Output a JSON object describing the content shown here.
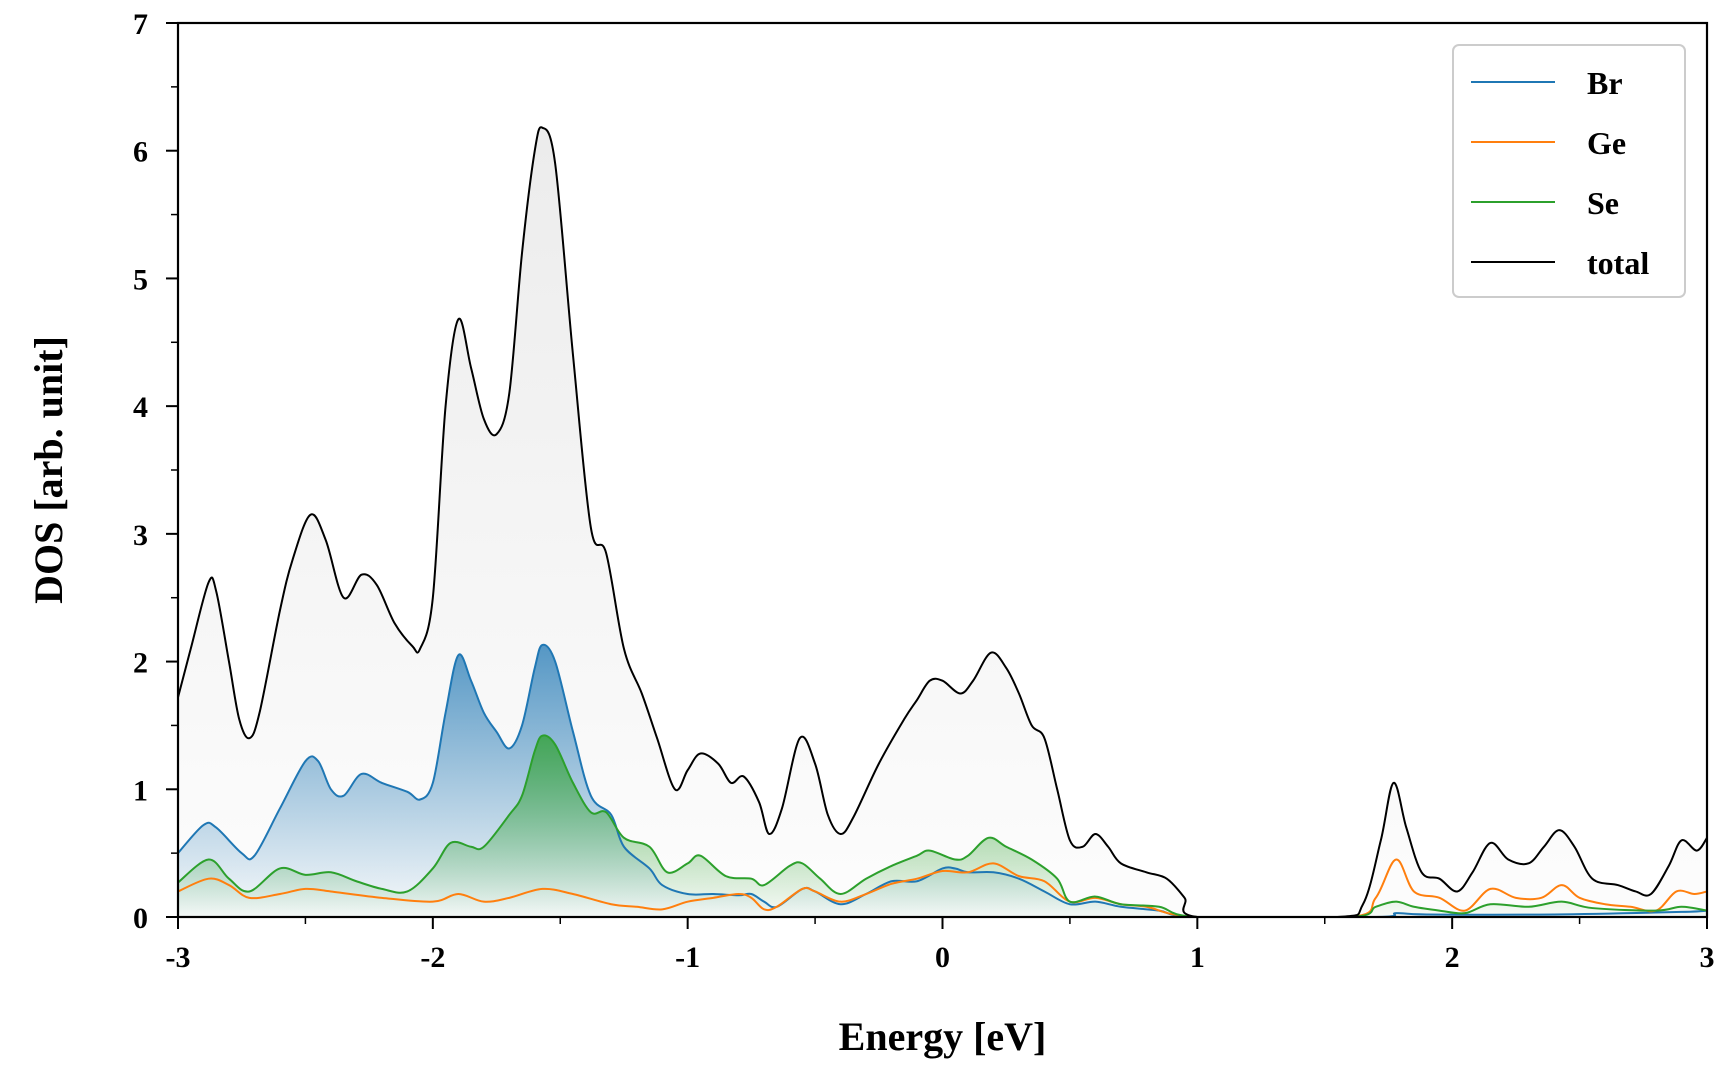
{
  "chart_data": {
    "type": "line",
    "title": "",
    "xlabel": "Energy [eV]",
    "ylabel": "DOS [arb. unit]",
    "xlim": [
      -3,
      3
    ],
    "ylim": [
      0,
      7
    ],
    "xticks": [
      -3,
      -2,
      -1,
      0,
      1,
      2,
      3
    ],
    "xtick_labels": [
      "-3",
      "-2",
      "-1",
      "0",
      "1",
      "2",
      "3"
    ],
    "yticks": [
      0,
      1,
      2,
      3,
      4,
      5,
      6,
      7
    ],
    "ytick_labels": [
      "0",
      "1",
      "2",
      "3",
      "4",
      "5",
      "6",
      "7"
    ],
    "legend_position": "top-right",
    "series": [
      {
        "name": "Br",
        "color": "#1f77b4",
        "filled": true,
        "points": [
          [
            -3.0,
            0.5
          ],
          [
            -2.9,
            0.72
          ],
          [
            -2.85,
            0.7
          ],
          [
            -2.75,
            0.5
          ],
          [
            -2.7,
            0.48
          ],
          [
            -2.6,
            0.85
          ],
          [
            -2.5,
            1.22
          ],
          [
            -2.45,
            1.22
          ],
          [
            -2.4,
            1.0
          ],
          [
            -2.35,
            0.95
          ],
          [
            -2.28,
            1.12
          ],
          [
            -2.2,
            1.05
          ],
          [
            -2.1,
            0.98
          ],
          [
            -2.05,
            0.92
          ],
          [
            -2.0,
            1.05
          ],
          [
            -1.95,
            1.6
          ],
          [
            -1.9,
            2.05
          ],
          [
            -1.85,
            1.85
          ],
          [
            -1.8,
            1.6
          ],
          [
            -1.75,
            1.45
          ],
          [
            -1.7,
            1.32
          ],
          [
            -1.65,
            1.5
          ],
          [
            -1.6,
            1.95
          ],
          [
            -1.57,
            2.13
          ],
          [
            -1.52,
            2.0
          ],
          [
            -1.45,
            1.45
          ],
          [
            -1.38,
            0.95
          ],
          [
            -1.3,
            0.8
          ],
          [
            -1.25,
            0.55
          ],
          [
            -1.15,
            0.38
          ],
          [
            -1.1,
            0.25
          ],
          [
            -1.0,
            0.18
          ],
          [
            -0.9,
            0.18
          ],
          [
            -0.8,
            0.17
          ],
          [
            -0.75,
            0.18
          ],
          [
            -0.7,
            0.12
          ],
          [
            -0.65,
            0.08
          ],
          [
            -0.55,
            0.22
          ],
          [
            -0.5,
            0.2
          ],
          [
            -0.4,
            0.1
          ],
          [
            -0.3,
            0.18
          ],
          [
            -0.2,
            0.28
          ],
          [
            -0.1,
            0.28
          ],
          [
            0.0,
            0.38
          ],
          [
            0.05,
            0.38
          ],
          [
            0.1,
            0.35
          ],
          [
            0.2,
            0.35
          ],
          [
            0.3,
            0.3
          ],
          [
            0.4,
            0.2
          ],
          [
            0.5,
            0.1
          ],
          [
            0.6,
            0.12
          ],
          [
            0.7,
            0.08
          ],
          [
            0.85,
            0.05
          ],
          [
            1.0,
            0.0
          ],
          [
            1.7,
            0.0
          ],
          [
            1.78,
            0.03
          ],
          [
            1.9,
            0.02
          ],
          [
            2.4,
            0.02
          ],
          [
            2.9,
            0.04
          ],
          [
            3.0,
            0.05
          ]
        ]
      },
      {
        "name": "Ge",
        "color": "#ff7f0e",
        "filled": false,
        "points": [
          [
            -3.0,
            0.2
          ],
          [
            -2.88,
            0.3
          ],
          [
            -2.8,
            0.25
          ],
          [
            -2.72,
            0.15
          ],
          [
            -2.6,
            0.18
          ],
          [
            -2.5,
            0.22
          ],
          [
            -2.4,
            0.2
          ],
          [
            -2.2,
            0.15
          ],
          [
            -2.0,
            0.12
          ],
          [
            -1.9,
            0.18
          ],
          [
            -1.8,
            0.12
          ],
          [
            -1.7,
            0.15
          ],
          [
            -1.57,
            0.22
          ],
          [
            -1.45,
            0.18
          ],
          [
            -1.3,
            0.1
          ],
          [
            -1.2,
            0.08
          ],
          [
            -1.1,
            0.06
          ],
          [
            -1.0,
            0.12
          ],
          [
            -0.9,
            0.15
          ],
          [
            -0.8,
            0.18
          ],
          [
            -0.75,
            0.15
          ],
          [
            -0.7,
            0.06
          ],
          [
            -0.65,
            0.08
          ],
          [
            -0.55,
            0.22
          ],
          [
            -0.5,
            0.2
          ],
          [
            -0.4,
            0.12
          ],
          [
            -0.3,
            0.18
          ],
          [
            -0.2,
            0.26
          ],
          [
            -0.1,
            0.3
          ],
          [
            0.0,
            0.36
          ],
          [
            0.1,
            0.35
          ],
          [
            0.2,
            0.42
          ],
          [
            0.3,
            0.32
          ],
          [
            0.4,
            0.28
          ],
          [
            0.5,
            0.12
          ],
          [
            0.6,
            0.15
          ],
          [
            0.7,
            0.1
          ],
          [
            0.8,
            0.08
          ],
          [
            1.0,
            0.0
          ],
          [
            1.6,
            0.0
          ],
          [
            1.7,
            0.15
          ],
          [
            1.78,
            0.45
          ],
          [
            1.85,
            0.2
          ],
          [
            1.95,
            0.15
          ],
          [
            2.05,
            0.05
          ],
          [
            2.15,
            0.22
          ],
          [
            2.25,
            0.15
          ],
          [
            2.35,
            0.15
          ],
          [
            2.43,
            0.25
          ],
          [
            2.5,
            0.15
          ],
          [
            2.6,
            0.1
          ],
          [
            2.7,
            0.08
          ],
          [
            2.8,
            0.05
          ],
          [
            2.88,
            0.2
          ],
          [
            2.95,
            0.18
          ],
          [
            3.0,
            0.2
          ]
        ]
      },
      {
        "name": "Se",
        "color": "#2ca02c",
        "filled": true,
        "points": [
          [
            -3.0,
            0.27
          ],
          [
            -2.88,
            0.45
          ],
          [
            -2.8,
            0.3
          ],
          [
            -2.72,
            0.2
          ],
          [
            -2.6,
            0.38
          ],
          [
            -2.5,
            0.33
          ],
          [
            -2.4,
            0.35
          ],
          [
            -2.3,
            0.28
          ],
          [
            -2.2,
            0.22
          ],
          [
            -2.1,
            0.2
          ],
          [
            -2.0,
            0.38
          ],
          [
            -1.93,
            0.58
          ],
          [
            -1.85,
            0.55
          ],
          [
            -1.8,
            0.55
          ],
          [
            -1.7,
            0.8
          ],
          [
            -1.65,
            0.95
          ],
          [
            -1.6,
            1.3
          ],
          [
            -1.57,
            1.42
          ],
          [
            -1.52,
            1.35
          ],
          [
            -1.45,
            1.05
          ],
          [
            -1.38,
            0.82
          ],
          [
            -1.32,
            0.82
          ],
          [
            -1.25,
            0.62
          ],
          [
            -1.15,
            0.55
          ],
          [
            -1.08,
            0.35
          ],
          [
            -1.0,
            0.42
          ],
          [
            -0.95,
            0.48
          ],
          [
            -0.85,
            0.32
          ],
          [
            -0.75,
            0.3
          ],
          [
            -0.7,
            0.25
          ],
          [
            -0.6,
            0.4
          ],
          [
            -0.55,
            0.42
          ],
          [
            -0.48,
            0.3
          ],
          [
            -0.4,
            0.18
          ],
          [
            -0.3,
            0.3
          ],
          [
            -0.2,
            0.4
          ],
          [
            -0.1,
            0.48
          ],
          [
            -0.05,
            0.52
          ],
          [
            0.05,
            0.45
          ],
          [
            0.1,
            0.48
          ],
          [
            0.18,
            0.62
          ],
          [
            0.25,
            0.55
          ],
          [
            0.35,
            0.45
          ],
          [
            0.45,
            0.3
          ],
          [
            0.5,
            0.12
          ],
          [
            0.6,
            0.16
          ],
          [
            0.7,
            0.1
          ],
          [
            0.85,
            0.08
          ],
          [
            1.0,
            0.0
          ],
          [
            1.6,
            0.0
          ],
          [
            1.7,
            0.08
          ],
          [
            1.78,
            0.12
          ],
          [
            1.85,
            0.08
          ],
          [
            1.95,
            0.05
          ],
          [
            2.05,
            0.03
          ],
          [
            2.15,
            0.1
          ],
          [
            2.3,
            0.08
          ],
          [
            2.43,
            0.12
          ],
          [
            2.55,
            0.07
          ],
          [
            2.8,
            0.05
          ],
          [
            2.9,
            0.08
          ],
          [
            3.0,
            0.05
          ]
        ]
      },
      {
        "name": "total",
        "color": "#000000",
        "filled": true,
        "points": [
          [
            -3.0,
            1.72
          ],
          [
            -2.95,
            2.1
          ],
          [
            -2.88,
            2.62
          ],
          [
            -2.85,
            2.55
          ],
          [
            -2.8,
            2.0
          ],
          [
            -2.76,
            1.55
          ],
          [
            -2.72,
            1.4
          ],
          [
            -2.68,
            1.6
          ],
          [
            -2.6,
            2.4
          ],
          [
            -2.55,
            2.8
          ],
          [
            -2.48,
            3.15
          ],
          [
            -2.42,
            2.95
          ],
          [
            -2.35,
            2.5
          ],
          [
            -2.28,
            2.68
          ],
          [
            -2.22,
            2.6
          ],
          [
            -2.15,
            2.3
          ],
          [
            -2.08,
            2.12
          ],
          [
            -2.05,
            2.1
          ],
          [
            -2.0,
            2.5
          ],
          [
            -1.95,
            4.0
          ],
          [
            -1.9,
            4.68
          ],
          [
            -1.85,
            4.3
          ],
          [
            -1.8,
            3.9
          ],
          [
            -1.75,
            3.78
          ],
          [
            -1.7,
            4.1
          ],
          [
            -1.65,
            5.2
          ],
          [
            -1.6,
            6.0
          ],
          [
            -1.57,
            6.18
          ],
          [
            -1.52,
            5.9
          ],
          [
            -1.45,
            4.4
          ],
          [
            -1.38,
            3.05
          ],
          [
            -1.32,
            2.85
          ],
          [
            -1.25,
            2.1
          ],
          [
            -1.18,
            1.75
          ],
          [
            -1.12,
            1.4
          ],
          [
            -1.05,
            1.0
          ],
          [
            -1.0,
            1.15
          ],
          [
            -0.95,
            1.28
          ],
          [
            -0.88,
            1.2
          ],
          [
            -0.83,
            1.05
          ],
          [
            -0.78,
            1.1
          ],
          [
            -0.72,
            0.9
          ],
          [
            -0.68,
            0.65
          ],
          [
            -0.63,
            0.85
          ],
          [
            -0.56,
            1.4
          ],
          [
            -0.5,
            1.2
          ],
          [
            -0.45,
            0.8
          ],
          [
            -0.4,
            0.65
          ],
          [
            -0.35,
            0.78
          ],
          [
            -0.25,
            1.2
          ],
          [
            -0.15,
            1.55
          ],
          [
            -0.1,
            1.7
          ],
          [
            -0.05,
            1.85
          ],
          [
            0.0,
            1.85
          ],
          [
            0.07,
            1.75
          ],
          [
            0.12,
            1.85
          ],
          [
            0.19,
            2.07
          ],
          [
            0.25,
            1.95
          ],
          [
            0.3,
            1.75
          ],
          [
            0.35,
            1.5
          ],
          [
            0.4,
            1.4
          ],
          [
            0.45,
            1.0
          ],
          [
            0.5,
            0.6
          ],
          [
            0.55,
            0.55
          ],
          [
            0.6,
            0.65
          ],
          [
            0.65,
            0.55
          ],
          [
            0.7,
            0.42
          ],
          [
            0.8,
            0.35
          ],
          [
            0.88,
            0.3
          ],
          [
            0.95,
            0.15
          ],
          [
            1.0,
            0.0
          ],
          [
            1.55,
            0.0
          ],
          [
            1.65,
            0.1
          ],
          [
            1.72,
            0.6
          ],
          [
            1.77,
            1.05
          ],
          [
            1.82,
            0.7
          ],
          [
            1.88,
            0.35
          ],
          [
            1.95,
            0.3
          ],
          [
            2.02,
            0.2
          ],
          [
            2.08,
            0.35
          ],
          [
            2.15,
            0.58
          ],
          [
            2.22,
            0.45
          ],
          [
            2.3,
            0.42
          ],
          [
            2.36,
            0.55
          ],
          [
            2.42,
            0.68
          ],
          [
            2.48,
            0.55
          ],
          [
            2.55,
            0.3
          ],
          [
            2.65,
            0.25
          ],
          [
            2.72,
            0.2
          ],
          [
            2.78,
            0.18
          ],
          [
            2.85,
            0.4
          ],
          [
            2.9,
            0.6
          ],
          [
            2.96,
            0.52
          ],
          [
            3.0,
            0.62
          ]
        ]
      }
    ]
  }
}
